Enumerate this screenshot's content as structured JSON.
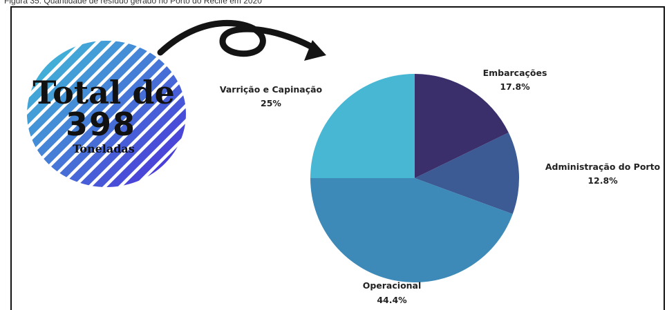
{
  "caption": "Figura 35: Quantidade de resíduo gerado no Porto do Recife em 2020",
  "badge": {
    "line1": "Total de",
    "line2": "398",
    "line3": "Toneladas"
  },
  "colors": {
    "stripe_a": "#4a3fd8",
    "stripe_b": "#3fd6d6"
  },
  "chart_data": {
    "type": "pie",
    "slices": [
      {
        "name": "Embarcações",
        "value": 17.8,
        "label": "17.8%",
        "color": "#3a2f6b"
      },
      {
        "name": "Administração do Porto",
        "value": 12.8,
        "label": "12.8%",
        "color": "#3c5a93"
      },
      {
        "name": "Operacional",
        "value": 44.4,
        "label": "44.4%",
        "color": "#3d8ab9"
      },
      {
        "name": "Varrição e Capinação",
        "value": 25,
        "label": "25%",
        "color": "#48b7d3"
      }
    ]
  }
}
